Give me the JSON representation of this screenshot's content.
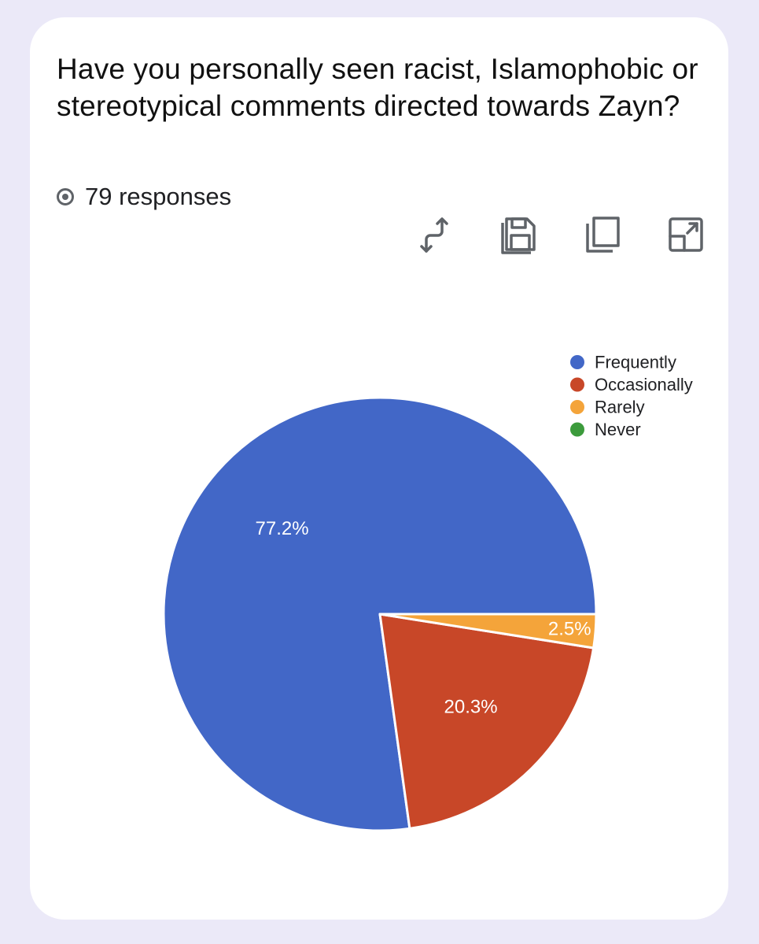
{
  "question": {
    "title": "Have you personally seen racist, Islamophobic or stereotypical comments directed towards Zayn?",
    "responses_text": "79 responses"
  },
  "toolbar": {
    "icons": [
      "swap-arrows-icon",
      "save-icon",
      "copy-icon",
      "expand-icon"
    ]
  },
  "chart_data": {
    "type": "pie",
    "categories": [
      "Frequently",
      "Occasionally",
      "Rarely",
      "Never"
    ],
    "values": [
      77.2,
      20.3,
      2.5,
      0
    ],
    "labels": [
      "77.2%",
      "20.3%",
      "2.5%",
      ""
    ],
    "colors": [
      "#4267c7",
      "#c84728",
      "#f4a43a",
      "#3c9b3c"
    ],
    "legend_position": "top-right"
  }
}
